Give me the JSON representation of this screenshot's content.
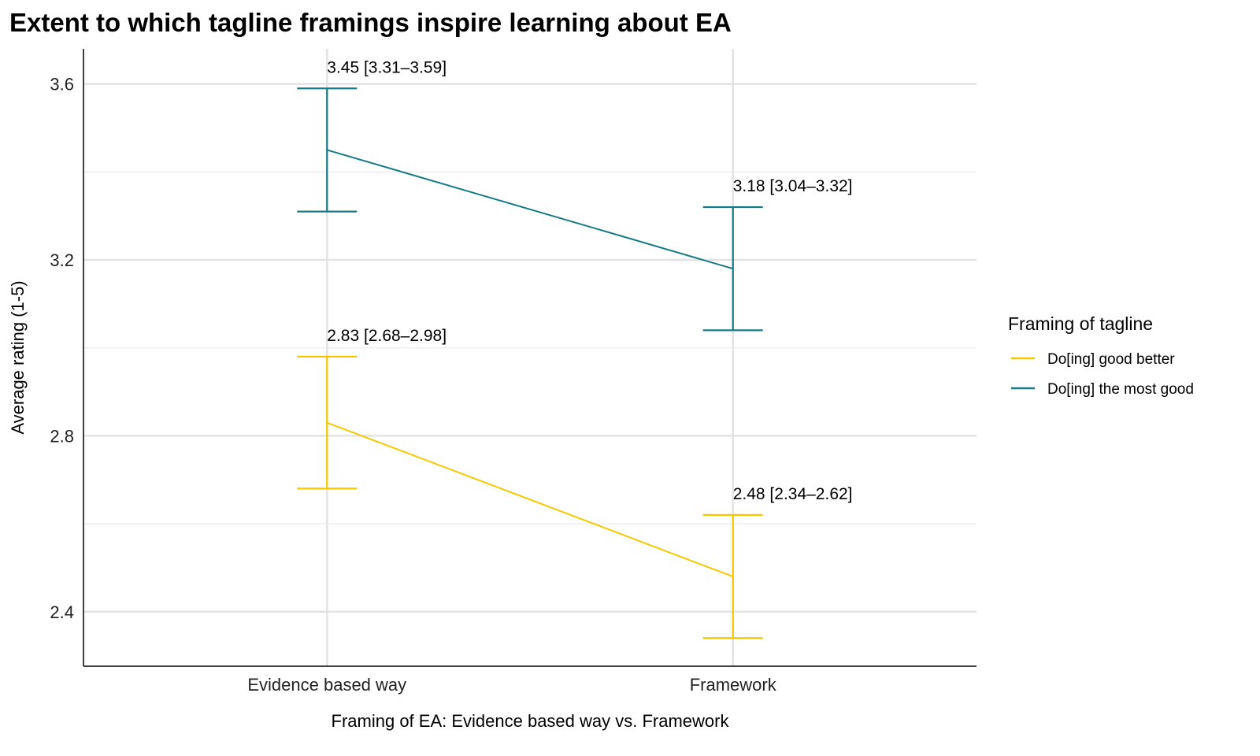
{
  "chart_data": {
    "type": "line",
    "title": "Extent to which tagline framings inspire learning about EA",
    "xlabel": "Framing of EA: Evidence based way vs. Framework",
    "ylabel": "Average rating (1-5)",
    "categories": [
      "Evidence based way",
      "Framework"
    ],
    "ylim": [
      2.276,
      3.68
    ],
    "yticks": [
      2.4,
      2.8,
      3.2,
      3.6
    ],
    "ytick_labels": [
      "2.4",
      "2.8",
      "3.2",
      "3.6"
    ],
    "yminor": [
      2.6,
      3.0,
      3.4
    ],
    "grid": true,
    "legend": {
      "title": "Framing of tagline",
      "position": "right"
    },
    "series": [
      {
        "name": "Do[ing] good better",
        "color": "#f5c800",
        "values": [
          2.83,
          2.48
        ],
        "lower": [
          2.68,
          2.34
        ],
        "upper": [
          2.98,
          2.62
        ],
        "labels": [
          "2.83 [2.68–2.98]",
          "2.48 [2.34–2.62]"
        ]
      },
      {
        "name": "Do[ing] the most good",
        "color": "#177b86",
        "values": [
          3.45,
          3.18
        ],
        "lower": [
          3.31,
          3.04
        ],
        "upper": [
          3.59,
          3.32
        ],
        "labels": [
          "3.45 [3.31–3.59]",
          "3.18 [3.04–3.32]"
        ]
      }
    ]
  }
}
